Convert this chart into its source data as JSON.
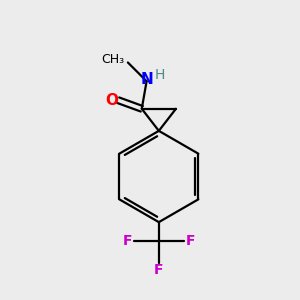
{
  "background_color": "#ececec",
  "bond_color": "#000000",
  "N_color": "#0000ff",
  "O_color": "#ff0000",
  "F_color": "#cc00cc",
  "H_color": "#4a8a8a",
  "line_width": 1.6,
  "figsize": [
    3.0,
    3.0
  ],
  "dpi": 100,
  "xlim": [
    0,
    10
  ],
  "ylim": [
    0,
    10
  ]
}
